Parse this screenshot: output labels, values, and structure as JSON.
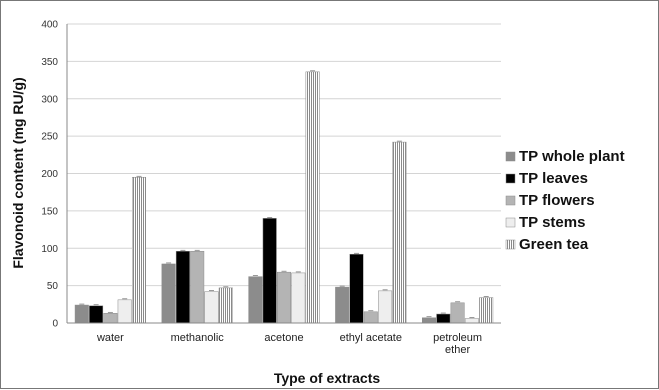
{
  "chart_data": {
    "type": "bar",
    "title": "",
    "xlabel": "Type of extracts",
    "ylabel": "Flavonoid content (mg RU/g)",
    "ylim": [
      0,
      400
    ],
    "yticks": [
      0,
      50,
      100,
      150,
      200,
      250,
      300,
      350,
      400
    ],
    "grid": true,
    "legend_position": "right",
    "categories": [
      "water",
      "methanolic",
      "acetone",
      "ethyl  acetate",
      "petroleum ether"
    ],
    "category_lines": [
      [
        "water"
      ],
      [
        "methanolic"
      ],
      [
        "acetone"
      ],
      [
        "ethyl  acetate"
      ],
      [
        "petroleum",
        "ether"
      ]
    ],
    "series": [
      {
        "name": "TP whole plant",
        "values": [
          24,
          79,
          62,
          48,
          7
        ],
        "color": "#8c8c8c",
        "pattern": "solid"
      },
      {
        "name": "TP  leaves",
        "values": [
          23,
          96,
          140,
          92,
          12
        ],
        "color": "#000000",
        "pattern": "solid"
      },
      {
        "name": "TP  flowers",
        "values": [
          13,
          96,
          68,
          15,
          27
        ],
        "color": "#b4b4b4",
        "pattern": "solid"
      },
      {
        "name": "TP stems",
        "values": [
          31,
          42,
          67,
          43,
          6
        ],
        "color": "#eeeeee",
        "pattern": "solid"
      },
      {
        "name": "Green tea",
        "values": [
          195,
          47,
          336,
          242,
          34
        ],
        "color": "#9a9a9a",
        "pattern": "vstripe"
      }
    ]
  }
}
